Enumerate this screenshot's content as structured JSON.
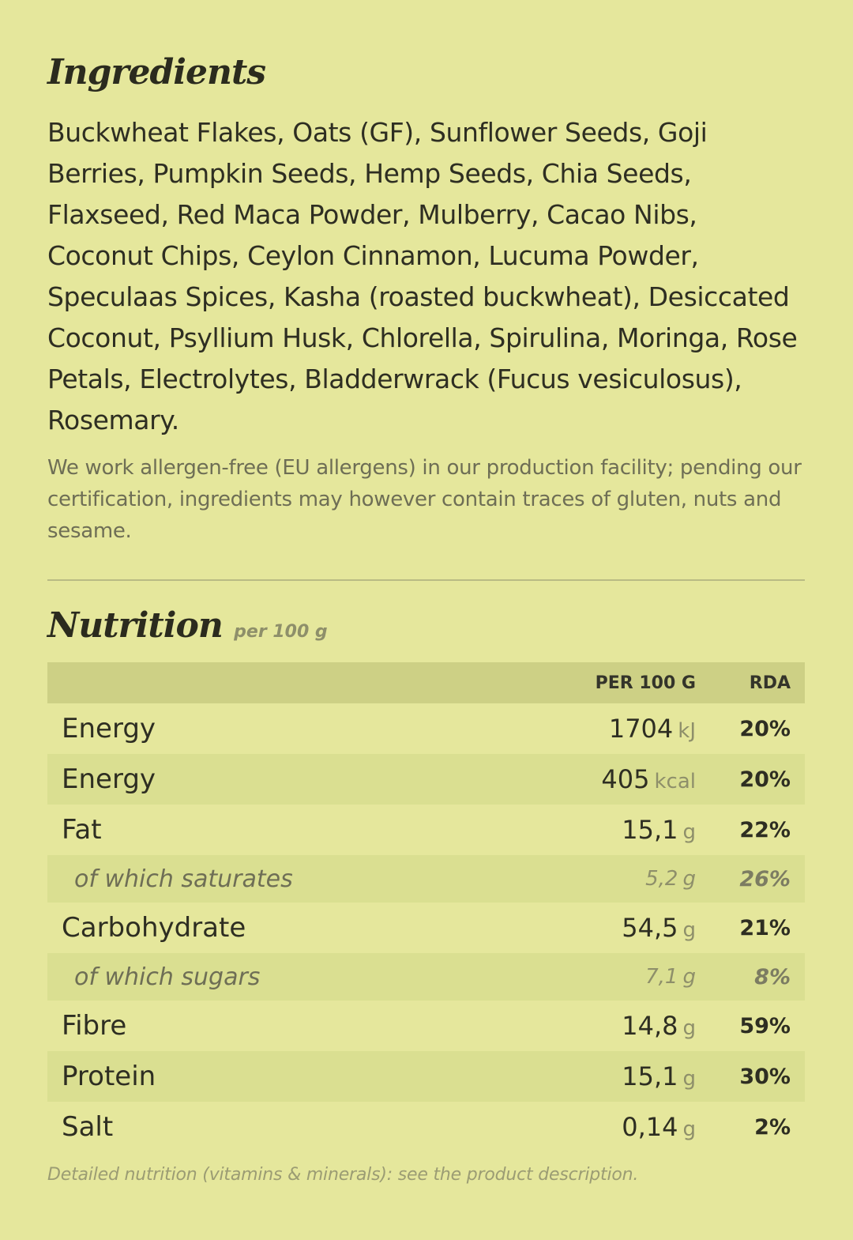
{
  "ingredients": {
    "heading": "Ingredients",
    "text": "Buckwheat Flakes, Oats (GF), Sunflower Seeds, Goji Berries, Pumpkin Seeds, Hemp Seeds, Chia Seeds, Flaxseed, Red Maca Powder, Mulberry, Cacao Nibs, Coconut Chips, Ceylon Cinnamon, Lucuma Powder, Speculaas Spices, Kasha (roasted buckwheat), Desiccated Coconut, Psyllium Husk, Chlorella, Spirulina, Moringa, Rose Petals, Electrolytes, Bladderwrack (Fucus vesiculosus), Rosemary.",
    "allergen_note": "We work allergen-free (EU allergens) in our production facility; pending our certification, ingredients may however contain traces of gluten, nuts and sesame."
  },
  "nutrition": {
    "heading": "Nutrition",
    "subheading": "per 100 g",
    "columns": {
      "name": "",
      "amount": "PER 100 G",
      "rda": "RDA"
    },
    "rows": [
      {
        "name": "Energy",
        "value": "1704",
        "unit": "kJ",
        "rda": "20%"
      },
      {
        "name": "Energy",
        "value": "405",
        "unit": "kcal",
        "rda": "20%"
      },
      {
        "name": "Fat",
        "value": "15,1",
        "unit": "g",
        "rda": "22%"
      },
      {
        "name": "of which saturates",
        "value": "5,2",
        "unit": "g",
        "rda": "26%"
      },
      {
        "name": "Carbohydrate",
        "value": "54,5",
        "unit": "g",
        "rda": "21%"
      },
      {
        "name": "of which sugars",
        "value": "7,1",
        "unit": "g",
        "rda": "8%"
      },
      {
        "name": "Fibre",
        "value": "14,8",
        "unit": "g",
        "rda": "59%"
      },
      {
        "name": "Protein",
        "value": "15,1",
        "unit": "g",
        "rda": "30%"
      },
      {
        "name": "Salt",
        "value": "0,14",
        "unit": "g",
        "rda": "2%"
      }
    ],
    "footnote": "Detailed nutrition (vitamins & minerals): see the product description."
  },
  "colors": {
    "background": "#e5e79c",
    "header_row": "#cdd085",
    "alt_row": "#dadf91",
    "text": "#2e2e22",
    "muted_text": "#8e8f6a"
  }
}
